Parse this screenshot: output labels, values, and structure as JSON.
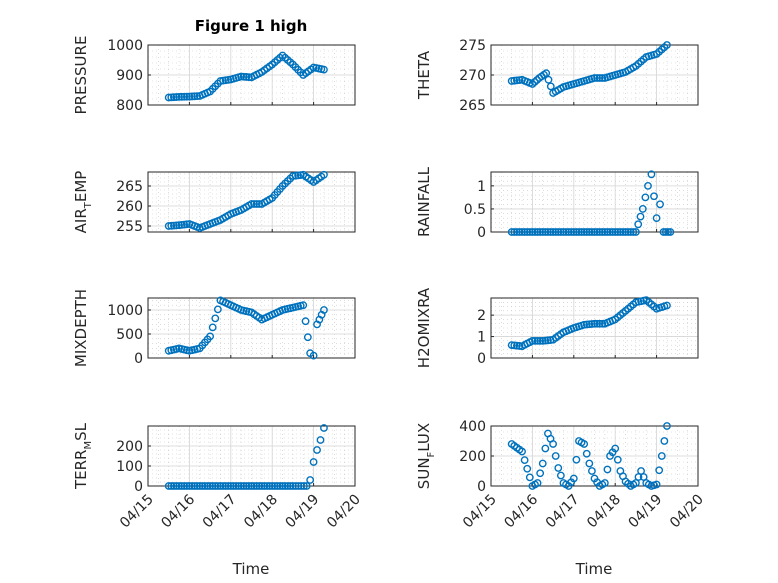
{
  "figure": {
    "title": "Figure 1 high",
    "xlabel": "Time",
    "x_tick_labels": [
      "04/15",
      "04/16",
      "04/17",
      "04/18",
      "04/19",
      "04/20"
    ],
    "marker_color": "#0072bd"
  },
  "chart_data": [
    {
      "type": "scatter",
      "ylabel": "PRESSURE",
      "ylim": [
        800,
        1000
      ],
      "yticks": [
        800,
        900,
        1000
      ],
      "x": [
        "04/15 12:00",
        "04/15 18:00",
        "04/16 00:00",
        "04/16 06:00",
        "04/16 12:00",
        "04/16 18:00",
        "04/17 00:00",
        "04/17 06:00",
        "04/17 12:00",
        "04/17 18:00",
        "04/18 00:00",
        "04/18 06:00",
        "04/18 12:00",
        "04/18 18:00",
        "04/19 00:00",
        "04/19 06:00"
      ],
      "y": [
        825,
        827,
        828,
        830,
        845,
        880,
        885,
        895,
        892,
        910,
        935,
        965,
        935,
        900,
        925,
        918
      ]
    },
    {
      "type": "scatter",
      "ylabel": "THETA",
      "ylim": [
        265,
        275
      ],
      "yticks": [
        265,
        270,
        275
      ],
      "x": [
        "04/15 12:00",
        "04/15 18:00",
        "04/16 00:00",
        "04/16 04:00",
        "04/16 08:00",
        "04/16 12:00",
        "04/16 18:00",
        "04/17 00:00",
        "04/17 06:00",
        "04/17 12:00",
        "04/17 18:00",
        "04/18 00:00",
        "04/18 06:00",
        "04/18 12:00",
        "04/18 18:00",
        "04/19 00:00",
        "04/19 06:00"
      ],
      "y": [
        269,
        269.2,
        268.5,
        269.5,
        270.3,
        267,
        268,
        268.5,
        269,
        269.5,
        269.5,
        270,
        270.5,
        271.5,
        273,
        273.5,
        275
      ]
    },
    {
      "type": "scatter",
      "ylabel": "AIR_TEMP",
      "ylim": [
        253.5,
        268.5
      ],
      "yticks": [
        255,
        260,
        265
      ],
      "x": [
        "04/15 12:00",
        "04/15 18:00",
        "04/16 00:00",
        "04/16 06:00",
        "04/16 12:00",
        "04/16 18:00",
        "04/17 00:00",
        "04/17 06:00",
        "04/17 12:00",
        "04/17 18:00",
        "04/18 00:00",
        "04/18 06:00",
        "04/18 12:00",
        "04/18 18:00",
        "04/19 00:00",
        "04/19 06:00"
      ],
      "y": [
        255,
        255.2,
        255.5,
        254.5,
        255.5,
        256.5,
        258,
        259,
        260.5,
        260.5,
        262,
        265,
        267.5,
        267.8,
        266,
        267.8
      ]
    },
    {
      "type": "scatter",
      "ylabel": "RAINFALL",
      "ylim": [
        0,
        1.3
      ],
      "yticks": [
        0,
        0.5,
        1
      ],
      "x": [
        "04/15 12:00",
        "04/16 00:00",
        "04/16 12:00",
        "04/17 00:00",
        "04/17 12:00",
        "04/18 00:00",
        "04/18 12:00",
        "04/18 16:00",
        "04/18 19:00",
        "04/18 21:00",
        "04/19 00:00",
        "04/19 02:00",
        "04/19 04:00",
        "04/19 08:00"
      ],
      "y": [
        0,
        0,
        0,
        0,
        0,
        0,
        0,
        0.5,
        1.0,
        1.25,
        0.3,
        0.6,
        0,
        0
      ]
    },
    {
      "type": "scatter",
      "ylabel": "MIXDEPTH",
      "ylim": [
        0,
        1250
      ],
      "yticks": [
        0,
        500,
        1000
      ],
      "x": [
        "04/15 12:00",
        "04/15 18:00",
        "04/16 00:00",
        "04/16 06:00",
        "04/16 12:00",
        "04/16 18:00",
        "04/17 00:00",
        "04/17 06:00",
        "04/17 12:00",
        "04/17 18:00",
        "04/18 00:00",
        "04/18 06:00",
        "04/18 12:00",
        "04/18 18:00",
        "04/18 22:00",
        "04/19 00:00",
        "04/19 02:00",
        "04/19 06:00"
      ],
      "y": [
        150,
        200,
        150,
        200,
        450,
        1200,
        1100,
        1000,
        950,
        800,
        900,
        1000,
        1050,
        1100,
        100,
        50,
        700,
        1000
      ]
    },
    {
      "type": "scatter",
      "ylabel": "H2OMIXRA",
      "ylim": [
        0,
        2.8
      ],
      "yticks": [
        0,
        1,
        2
      ],
      "x": [
        "04/15 12:00",
        "04/15 18:00",
        "04/16 00:00",
        "04/16 06:00",
        "04/16 12:00",
        "04/16 18:00",
        "04/17 00:00",
        "04/17 06:00",
        "04/17 12:00",
        "04/17 18:00",
        "04/18 00:00",
        "04/18 06:00",
        "04/18 12:00",
        "04/18 18:00",
        "04/19 00:00",
        "04/19 06:00"
      ],
      "y": [
        0.6,
        0.55,
        0.8,
        0.8,
        0.85,
        1.2,
        1.4,
        1.55,
        1.6,
        1.6,
        1.8,
        2.2,
        2.6,
        2.7,
        2.3,
        2.45
      ]
    },
    {
      "type": "scatter",
      "ylabel": "TERR_MSL",
      "ylim": [
        0,
        300
      ],
      "yticks": [
        0,
        100,
        200
      ],
      "x": [
        "04/15 12:00",
        "04/16 00:00",
        "04/16 12:00",
        "04/17 00:00",
        "04/17 12:00",
        "04/18 00:00",
        "04/18 12:00",
        "04/18 20:00",
        "04/18 22:00",
        "04/19 00:00",
        "04/19 02:00",
        "04/19 04:00",
        "04/19 06:00"
      ],
      "y": [
        0,
        0,
        0,
        0,
        0,
        0,
        0,
        0,
        30,
        120,
        180,
        230,
        290
      ]
    },
    {
      "type": "scatter",
      "ylabel": "SUN_FLUX",
      "ylim": [
        0,
        400
      ],
      "yticks": [
        0,
        200,
        400
      ],
      "x": [
        "04/15 12:00",
        "04/15 18:00",
        "04/16 00:00",
        "04/16 03:00",
        "04/16 06:00",
        "04/16 09:00",
        "04/16 12:00",
        "04/16 15:00",
        "04/16 18:00",
        "04/16 21:00",
        "04/17 00:00",
        "04/17 03:00",
        "04/17 06:00",
        "04/17 09:00",
        "04/17 12:00",
        "04/17 15:00",
        "04/17 18:00",
        "04/17 21:00",
        "04/18 00:00",
        "04/18 03:00",
        "04/18 06:00",
        "04/18 09:00",
        "04/18 12:00",
        "04/18 15:00",
        "04/18 18:00",
        "04/18 21:00",
        "04/19 00:00",
        "04/19 03:00",
        "04/19 06:00"
      ],
      "y": [
        280,
        230,
        0,
        20,
        150,
        350,
        280,
        120,
        20,
        0,
        50,
        300,
        280,
        150,
        50,
        0,
        20,
        200,
        250,
        100,
        30,
        0,
        20,
        100,
        20,
        0,
        10,
        200,
        400
      ]
    }
  ]
}
